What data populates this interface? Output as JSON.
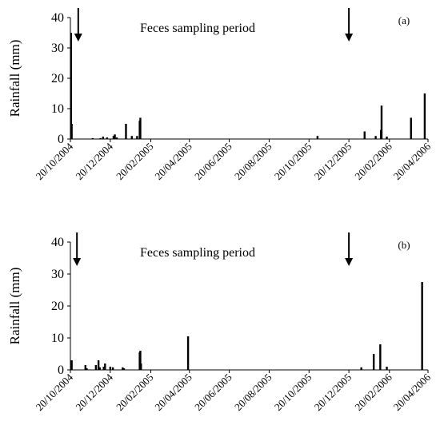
{
  "chart_data": [
    {
      "type": "bar",
      "panel": "(a)",
      "ylabel": "Rainfall (mm)",
      "xlabel": "",
      "ylim": [
        0,
        40
      ],
      "yticks": [
        0,
        10,
        20,
        30,
        40
      ],
      "xticks": [
        "20/10/2004",
        "20/12/2004",
        "20/02/2005",
        "20/04/2005",
        "20/06/2005",
        "20/08/2005",
        "20/10/2005",
        "20/12/2005",
        "20/02/2006",
        "20/04/2006"
      ],
      "annotation": "Feces sampling period",
      "arrows": [
        "2004-11-01",
        "2005-12-20"
      ],
      "bars": [
        {
          "date": "2004-10-21",
          "value": 35
        },
        {
          "date": "2004-10-22",
          "value": 5
        },
        {
          "date": "2004-11-23",
          "value": 0.3
        },
        {
          "date": "2004-12-05",
          "value": 0.3
        },
        {
          "date": "2004-12-09",
          "value": 0.8
        },
        {
          "date": "2004-12-15",
          "value": 0.5
        },
        {
          "date": "2004-12-25",
          "value": 1
        },
        {
          "date": "2004-12-27",
          "value": 1.5
        },
        {
          "date": "2004-12-30",
          "value": 0.5
        },
        {
          "date": "2005-01-13",
          "value": 5
        },
        {
          "date": "2005-01-22",
          "value": 1
        },
        {
          "date": "2005-01-30",
          "value": 1
        },
        {
          "date": "2005-02-03",
          "value": 6
        },
        {
          "date": "2005-02-04",
          "value": 7
        },
        {
          "date": "2005-11-02",
          "value": 1
        },
        {
          "date": "2006-01-13",
          "value": 2.5
        },
        {
          "date": "2006-01-30",
          "value": 1
        },
        {
          "date": "2006-02-07",
          "value": 3
        },
        {
          "date": "2006-02-08",
          "value": 11
        },
        {
          "date": "2006-02-16",
          "value": 0.8
        },
        {
          "date": "2006-03-25",
          "value": 7
        },
        {
          "date": "2006-04-15",
          "value": 15
        }
      ]
    },
    {
      "type": "bar",
      "panel": "(b)",
      "ylabel": "Rainfall (mm)",
      "xlabel": "",
      "ylim": [
        0,
        40
      ],
      "yticks": [
        0,
        10,
        20,
        30,
        40
      ],
      "xticks": [
        "20/10/2004",
        "20/12/2004",
        "20/02/2005",
        "20/04/2005",
        "20/06/2005",
        "20/08/2005",
        "20/10/2005",
        "20/12/2005",
        "20/02/2006",
        "20/04/2006"
      ],
      "annotation": "Feces sampling period",
      "arrows": [
        "2004-10-30",
        "2005-12-20"
      ],
      "bars": [
        {
          "date": "2004-10-22",
          "value": 3
        },
        {
          "date": "2004-11-12",
          "value": 1.5
        },
        {
          "date": "2004-11-14",
          "value": 0.5
        },
        {
          "date": "2004-11-28",
          "value": 1.5
        },
        {
          "date": "2004-12-02",
          "value": 3
        },
        {
          "date": "2004-12-04",
          "value": 0.8
        },
        {
          "date": "2004-12-10",
          "value": 1
        },
        {
          "date": "2004-12-12",
          "value": 2
        },
        {
          "date": "2004-12-20",
          "value": 1
        },
        {
          "date": "2004-12-24",
          "value": 0.8
        },
        {
          "date": "2005-01-08",
          "value": 0.8
        },
        {
          "date": "2005-01-10",
          "value": 0.5
        },
        {
          "date": "2005-02-03",
          "value": 5.5
        },
        {
          "date": "2005-02-04",
          "value": 6
        },
        {
          "date": "2005-02-05",
          "value": 2
        },
        {
          "date": "2005-04-18",
          "value": 10.5
        },
        {
          "date": "2006-01-08",
          "value": 0.8
        },
        {
          "date": "2006-01-27",
          "value": 5
        },
        {
          "date": "2006-02-06",
          "value": 8
        },
        {
          "date": "2006-02-16",
          "value": 1
        },
        {
          "date": "2006-04-11",
          "value": 27.5
        }
      ]
    }
  ]
}
